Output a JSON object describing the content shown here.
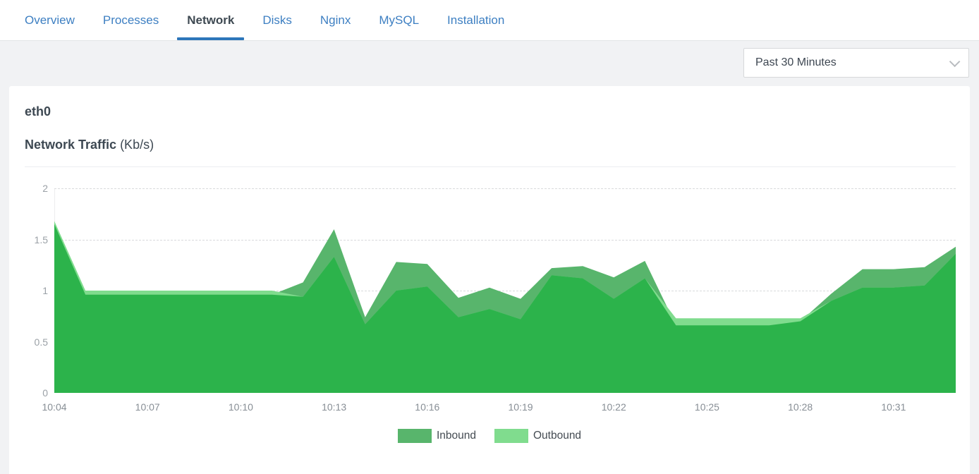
{
  "tabs": {
    "items": [
      {
        "label": "Overview",
        "active": false
      },
      {
        "label": "Processes",
        "active": false
      },
      {
        "label": "Network",
        "active": true
      },
      {
        "label": "Disks",
        "active": false
      },
      {
        "label": "Nginx",
        "active": false
      },
      {
        "label": "MySQL",
        "active": false
      },
      {
        "label": "Installation",
        "active": false
      }
    ]
  },
  "toolbar": {
    "time_range_value": "Past 30 Minutes"
  },
  "card": {
    "interface_name": "eth0",
    "chart_title": "Network Traffic",
    "chart_title_unit": "(Kb/s)"
  },
  "colors": {
    "accent_blue": "#2d76ba",
    "tab_link_blue": "#3d7fc2",
    "overlap_green": "#2cb34b",
    "inbound_green": "#58b56c",
    "outbound_green": "#80dc8e"
  },
  "chart_data": {
    "type": "area",
    "title": "Network Traffic (Kb/s)",
    "xlabel": "",
    "ylabel": "",
    "ylim": [
      0,
      2
    ],
    "y_ticks": [
      0,
      0.5,
      1,
      1.5,
      2
    ],
    "grid": "dashed-horizontal",
    "legend_position": "bottom",
    "x": [
      "10:04",
      "10:05",
      "10:06",
      "10:07",
      "10:08",
      "10:09",
      "10:10",
      "10:11",
      "10:12",
      "10:13",
      "10:14",
      "10:15",
      "10:16",
      "10:17",
      "10:18",
      "10:19",
      "10:20",
      "10:21",
      "10:22",
      "10:23",
      "10:24",
      "10:25",
      "10:26",
      "10:27",
      "10:28",
      "10:29",
      "10:30",
      "10:31",
      "10:32",
      "10:33"
    ],
    "x_tick_labels": [
      "10:04",
      "10:07",
      "10:10",
      "10:13",
      "10:16",
      "10:19",
      "10:22",
      "10:25",
      "10:28",
      "10:31"
    ],
    "x_tick_step": 3,
    "series": [
      {
        "name": "Inbound",
        "color": "#58b56c",
        "values": [
          1.65,
          0.96,
          0.96,
          0.96,
          0.96,
          0.96,
          0.96,
          0.96,
          1.08,
          1.6,
          0.74,
          1.28,
          1.26,
          0.93,
          1.03,
          0.92,
          1.22,
          1.24,
          1.13,
          1.29,
          0.66,
          0.66,
          0.66,
          0.66,
          0.7,
          0.97,
          1.21,
          1.21,
          1.23,
          1.43
        ]
      },
      {
        "name": "Outbound",
        "color": "#80dc8e",
        "values": [
          1.68,
          1.0,
          1.0,
          1.0,
          1.0,
          1.0,
          1.0,
          1.0,
          0.94,
          1.33,
          0.67,
          1.0,
          1.04,
          0.74,
          0.82,
          0.72,
          1.15,
          1.12,
          0.92,
          1.12,
          0.73,
          0.73,
          0.73,
          0.73,
          0.73,
          0.9,
          1.03,
          1.03,
          1.05,
          1.36
        ]
      }
    ],
    "overlap_color": "#2cb34b"
  }
}
